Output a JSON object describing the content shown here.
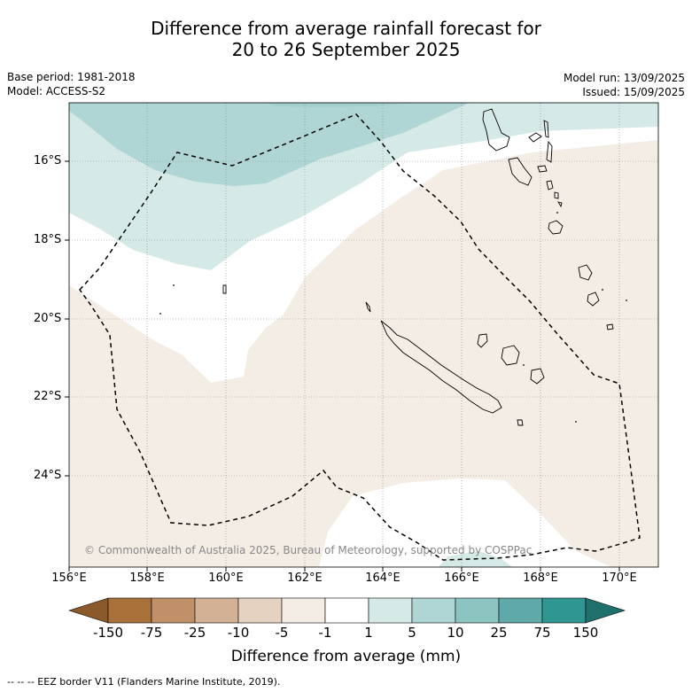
{
  "title": {
    "line1": "Difference from average rainfall forecast for",
    "line2": "20 to 26 September 2025"
  },
  "meta_left": {
    "base_period": "Base period: 1981-2018",
    "model": "Model: ACCESS-S2"
  },
  "meta_right": {
    "model_run": "Model run: 13/09/2025",
    "issued": "Issued: 15/09/2025"
  },
  "map": {
    "lat_labels": [
      "16°S",
      "18°S",
      "20°S",
      "22°S",
      "24°S"
    ],
    "lon_labels": [
      "156°E",
      "158°E",
      "160°E",
      "162°E",
      "164°E",
      "166°E",
      "168°E",
      "170°E"
    ],
    "copyright": "© Commonwealth of Australia 2025, Bureau of Meteorology, supported by COSPPac",
    "colors": {
      "ocean_base": "#f4ede6",
      "neutral": "#ffffff",
      "wet_1_5": "#d5e9e7",
      "wet_5_10": "#afd6d4",
      "wet_10_25": "#8cc4c1",
      "eez_border": "#000000"
    }
  },
  "colorbar": {
    "labels": [
      "-150",
      "-75",
      "-25",
      "-10",
      "-5",
      "-1",
      "1",
      "5",
      "10",
      "25",
      "75",
      "150"
    ],
    "colors": [
      "#a8713a",
      "#c09168",
      "#d3b195",
      "#e6d2c1",
      "#f4ede6",
      "#ffffff",
      "#d5e9e7",
      "#afd6d4",
      "#8cc4c1",
      "#5fa9a8",
      "#2f9692"
    ],
    "low_extend_color": "#8b5a2b",
    "high_extend_color": "#1f6f6c",
    "title": "Difference from average (mm)"
  },
  "footer_note": "--  --  -- EEZ border V11 (Flanders Marine Institute, 2019)."
}
